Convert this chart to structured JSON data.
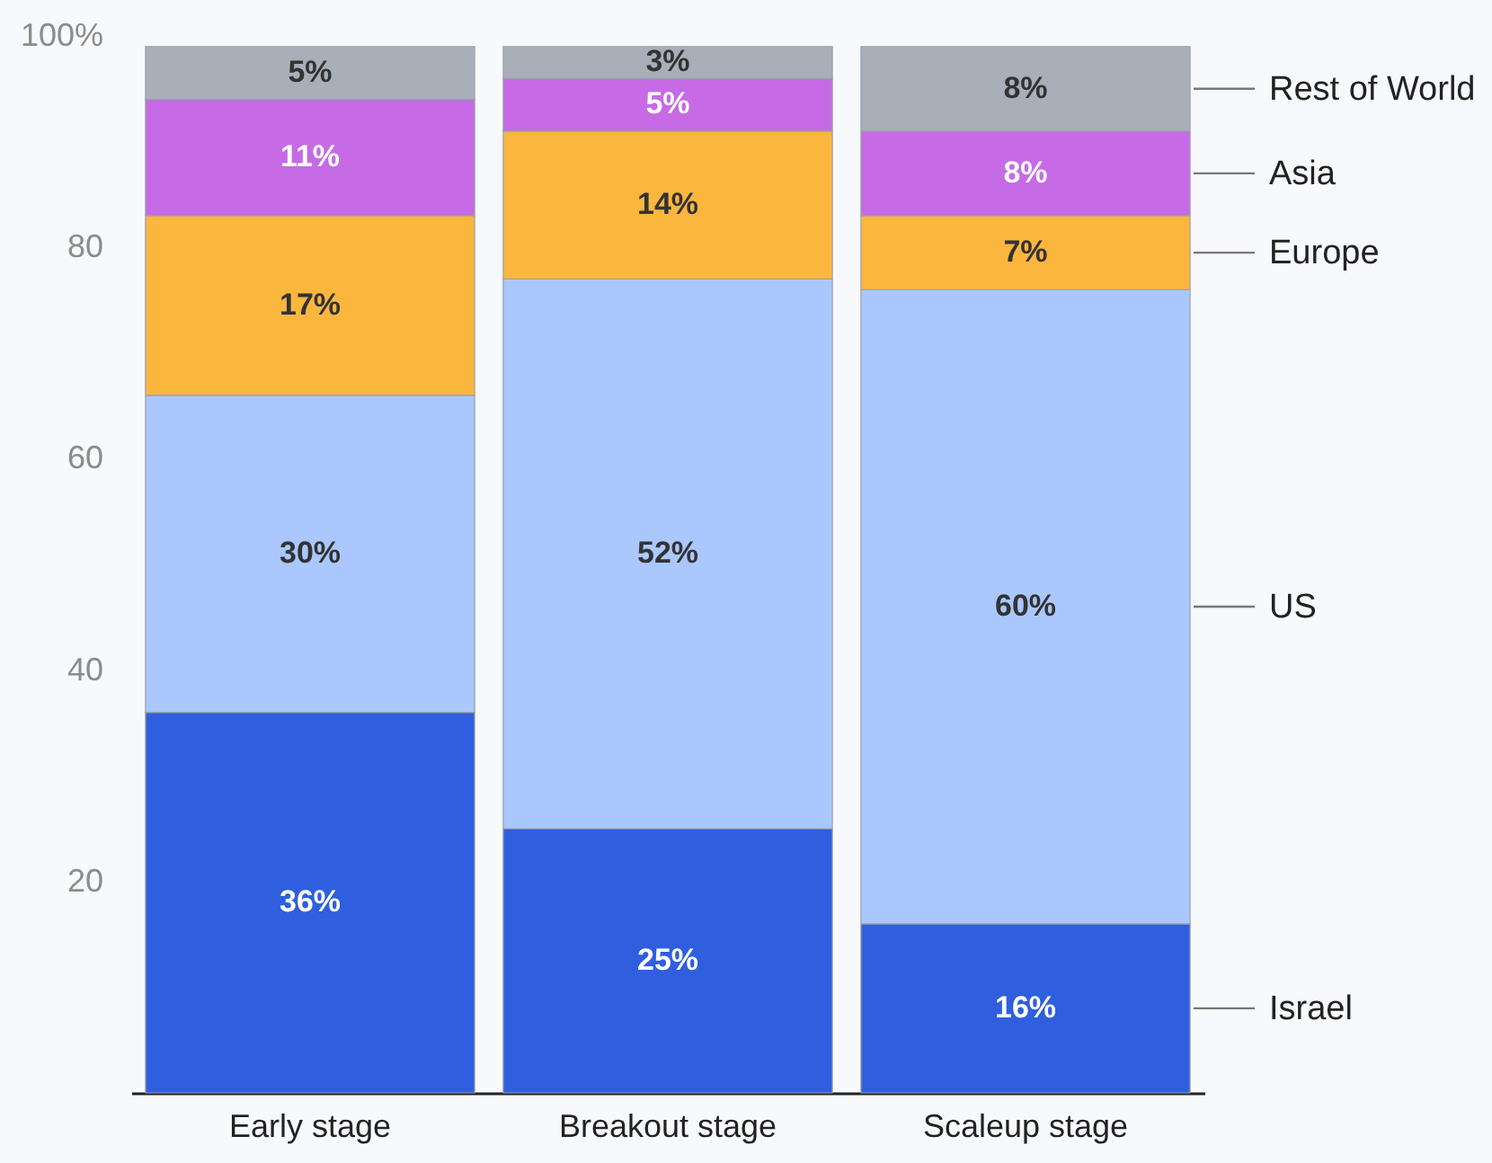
{
  "chart_data": {
    "type": "bar",
    "stacked": true,
    "categories": [
      "Early stage",
      "Breakout stage",
      "Scaleup stage"
    ],
    "series": [
      {
        "name": "Israel",
        "color": "#2f5fdf",
        "values": [
          36,
          25,
          16
        ],
        "value_labels": [
          "36%",
          "25%",
          "16%"
        ]
      },
      {
        "name": "US",
        "color": "#aac8fd",
        "values": [
          30,
          52,
          60
        ],
        "value_labels": [
          "30%",
          "52%",
          "60%"
        ]
      },
      {
        "name": "Europe",
        "color": "#fbb63e",
        "values": [
          17,
          14,
          7
        ],
        "value_labels": [
          "17%",
          "14%",
          "7%"
        ]
      },
      {
        "name": "Asia",
        "color": "#c66ae6",
        "values": [
          11,
          5,
          8
        ],
        "value_labels": [
          "11%",
          "5%",
          "8%"
        ]
      },
      {
        "name": "Rest of World",
        "color": "#a8afb9",
        "values": [
          5,
          3,
          8
        ],
        "value_labels": [
          "5%",
          "3%",
          "8%"
        ]
      }
    ],
    "ylim": [
      0,
      100
    ],
    "yticks": [
      20,
      40,
      60,
      80,
      {
        "value": 100,
        "label": "100%"
      }
    ],
    "grid": false,
    "legend": "right"
  }
}
